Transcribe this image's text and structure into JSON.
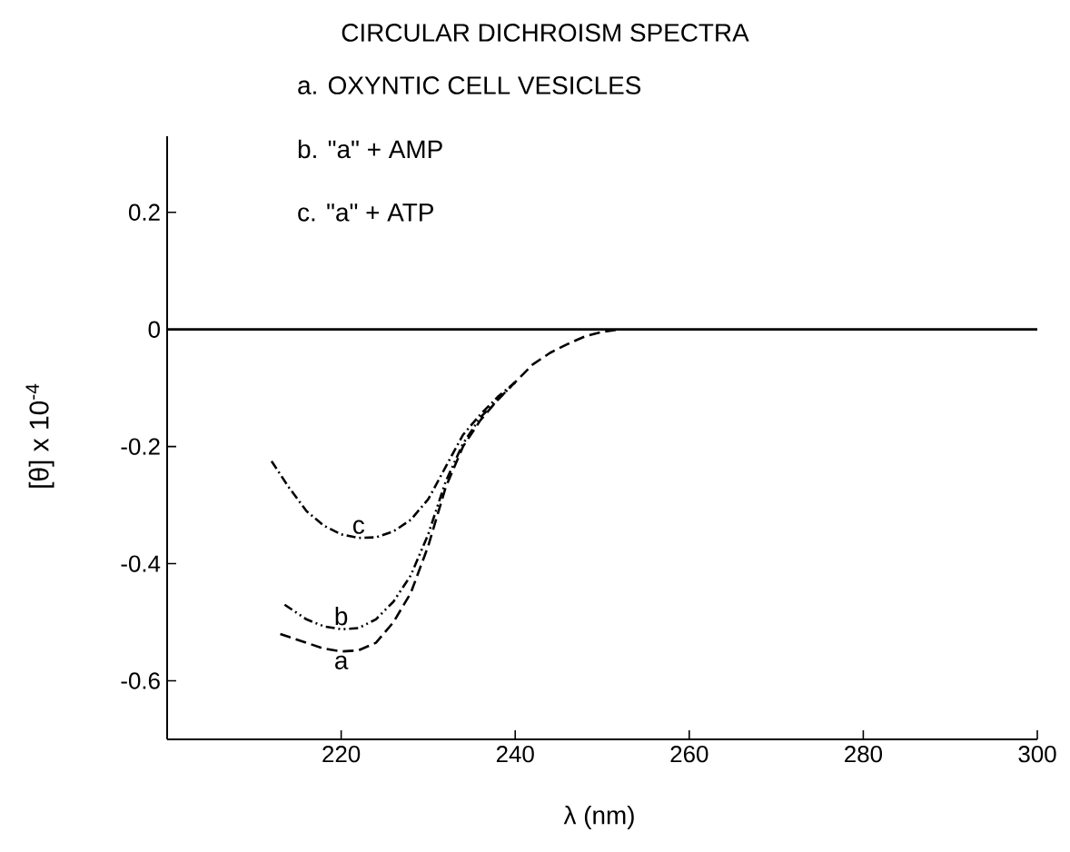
{
  "chart_data": {
    "type": "line",
    "title": "CIRCULAR DICHROISM SPECTRA",
    "xlabel": "λ (nm)",
    "ylabel": "[θ] x 10$^{-4}$",
    "xlim": [
      200,
      300
    ],
    "ylim": [
      -0.7,
      0.33
    ],
    "xticks": [
      220,
      240,
      260,
      280,
      300
    ],
    "yticks": [
      0.2,
      0,
      -0.2,
      -0.4,
      -0.6
    ],
    "grid": false,
    "ref_lines": [
      {
        "axis": "y",
        "value": 0,
        "color": "#000000",
        "line_style": "solid"
      }
    ],
    "annotations": [
      "a. OXYNTIC CELL VESICLES",
      "b. \"a\" + AMP",
      "c. \"a\" + ATP"
    ],
    "series": [
      {
        "name": "a",
        "color": "#000000",
        "line_style": "dashed",
        "x": [
          213,
          216,
          218,
          220,
          222,
          224,
          226,
          228,
          230,
          232,
          234,
          236,
          238,
          240,
          242,
          244,
          246,
          248,
          250,
          252
        ],
        "values": [
          -0.52,
          -0.535,
          -0.545,
          -0.55,
          -0.548,
          -0.535,
          -0.5,
          -0.45,
          -0.37,
          -0.27,
          -0.2,
          -0.155,
          -0.12,
          -0.09,
          -0.06,
          -0.04,
          -0.025,
          -0.012,
          -0.004,
          0
        ]
      },
      {
        "name": "b",
        "color": "#000000",
        "line_style": "dashdotdotted",
        "x": [
          213.5,
          216,
          218,
          220,
          222,
          224,
          226,
          228,
          230,
          232,
          234,
          236,
          238,
          240
        ],
        "values": [
          -0.47,
          -0.495,
          -0.507,
          -0.512,
          -0.51,
          -0.495,
          -0.465,
          -0.42,
          -0.35,
          -0.26,
          -0.195,
          -0.15,
          -0.12,
          -0.09
        ]
      },
      {
        "name": "c",
        "color": "#000000",
        "line_style": "dashdotted",
        "x": [
          212,
          214,
          216,
          218,
          220,
          222,
          224,
          226,
          228,
          230,
          232,
          234,
          236,
          238,
          240
        ],
        "values": [
          -0.225,
          -0.27,
          -0.31,
          -0.335,
          -0.35,
          -0.356,
          -0.355,
          -0.345,
          -0.325,
          -0.29,
          -0.235,
          -0.18,
          -0.145,
          -0.115,
          -0.09
        ]
      }
    ]
  }
}
